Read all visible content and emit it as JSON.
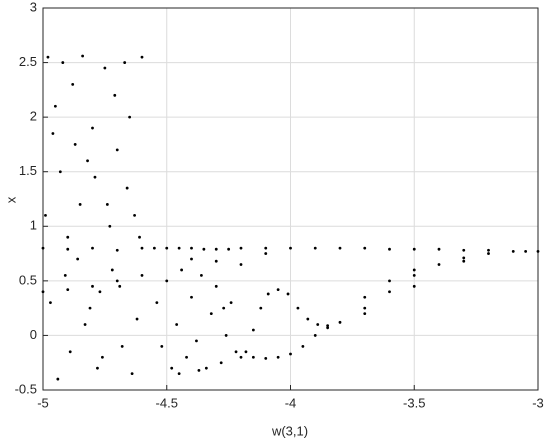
{
  "chart_data": {
    "type": "scatter",
    "xlabel": "w(3,1)",
    "ylabel": "x",
    "color": "#000000",
    "grid": true,
    "xlim": [
      -5,
      -3
    ],
    "ylim": [
      -0.5,
      3
    ],
    "xticks": [
      -5,
      -4.5,
      -4,
      -3.5,
      -3
    ],
    "yticks": [
      -0.5,
      0,
      0.5,
      1,
      1.5,
      2,
      2.5,
      3
    ],
    "x": [
      -4.98,
      -4.95,
      -4.93,
      -4.9,
      -4.88,
      -4.85,
      -4.83,
      -4.8,
      -4.78,
      -4.75,
      -4.72,
      -4.7,
      -4.68,
      -4.65,
      -4.63,
      -4.6,
      -4.97,
      -4.94,
      -4.91,
      -4.87,
      -4.84,
      -4.81,
      -4.79,
      -4.76,
      -4.73,
      -4.71,
      -4.69,
      -4.66,
      -4.64,
      -4.61,
      -4.99,
      -4.96,
      -4.92,
      -4.89,
      -4.86,
      -4.82,
      -4.77,
      -4.74,
      -4.67,
      -4.62,
      -5,
      -4.9,
      -4.8,
      -4.7,
      -4.6,
      -5,
      -4.9,
      -4.8,
      -4.7,
      -4.6,
      -4.55,
      -4.5,
      -4.45,
      -4.4,
      -4.35,
      -4.3,
      -4.25,
      -4.2,
      -4.54,
      -4.52,
      -4.5,
      -4.48,
      -4.46,
      -4.44,
      -4.42,
      -4.4,
      -4.38,
      -4.36,
      -4.34,
      -4.32,
      -4.3,
      -4.28,
      -4.26,
      -4.24,
      -4.22,
      -4.2,
      -4.45,
      -4.37,
      -4.27,
      -4.1,
      -4.0,
      -3.9,
      -3.8,
      -3.7,
      -3.6,
      -3.5,
      -3.4,
      -3.3,
      -3.2,
      -3.1,
      -3.05,
      -3.0,
      -4.18,
      -4.15,
      -4.12,
      -4.09,
      -4.05,
      -4.01,
      -3.97,
      -3.93,
      -3.89,
      -3.85,
      -3.8,
      -3.7,
      -3.6,
      -3.5,
      -3.4,
      -3.3,
      -3.2,
      -4.15,
      -4.1,
      -4.05,
      -4.0,
      -3.95,
      -3.9,
      -3.85,
      -3.7,
      -3.6,
      -3.5,
      -3.7,
      -3.5,
      -3.3,
      -4.4,
      -4.3,
      -4.2,
      -4.1
    ],
    "values": [
      2.55,
      2.1,
      1.5,
      0.9,
      2.3,
      1.2,
      0.1,
      1.9,
      -0.3,
      2.45,
      0.6,
      1.7,
      -0.1,
      2.0,
      1.1,
      2.55,
      0.3,
      -0.4,
      0.55,
      1.75,
      2.56,
      0.25,
      1.45,
      -0.2,
      1.0,
      2.2,
      0.45,
      1.35,
      -0.35,
      0.9,
      1.1,
      1.85,
      2.5,
      -0.15,
      0.7,
      1.6,
      0.4,
      1.2,
      2.5,
      0.15,
      0.8,
      0.79,
      0.8,
      0.78,
      0.8,
      0.4,
      0.42,
      0.45,
      0.5,
      0.55,
      0.8,
      0.8,
      0.8,
      0.8,
      0.79,
      0.79,
      0.79,
      0.8,
      0.3,
      -0.1,
      0.5,
      -0.3,
      0.1,
      0.6,
      -0.2,
      0.35,
      -0.05,
      0.55,
      -0.3,
      0.2,
      0.45,
      -0.25,
      0.0,
      0.3,
      -0.15,
      -0.2,
      -0.35,
      -0.32,
      0.25,
      0.8,
      0.8,
      0.8,
      0.8,
      0.8,
      0.79,
      0.79,
      0.79,
      0.78,
      0.78,
      0.77,
      0.77,
      0.77,
      -0.15,
      0.05,
      0.25,
      0.38,
      0.42,
      0.38,
      0.25,
      0.15,
      0.1,
      0.09,
      0.12,
      0.25,
      0.4,
      0.55,
      0.65,
      0.71,
      0.75,
      -0.2,
      -0.21,
      -0.2,
      -0.17,
      -0.1,
      0.0,
      0.07,
      0.35,
      0.5,
      0.6,
      0.2,
      0.45,
      0.68,
      0.7,
      0.68,
      0.65,
      0.75
    ]
  }
}
